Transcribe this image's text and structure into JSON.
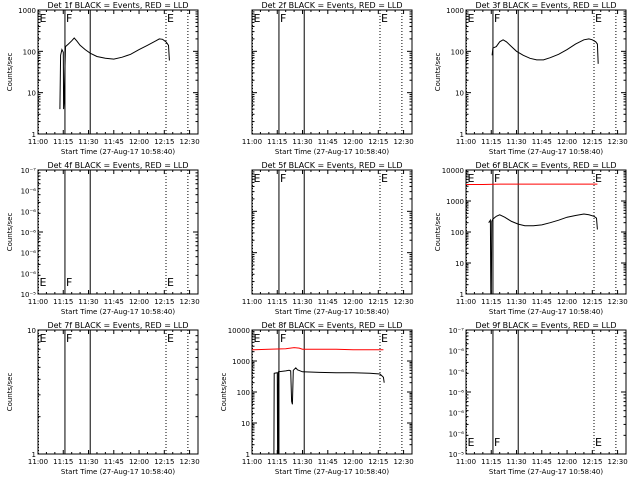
{
  "chart_data": [
    {
      "type": "line",
      "title": "Det 1f BLACK = Events, RED = LLD",
      "xlabel": "Start Time (27-Aug-17 10:58:40)",
      "ylabel": "Counts/sec",
      "xlim": [
        0,
        95
      ],
      "x_ticks": [
        "11:00",
        "11:15",
        "11:30",
        "11:45",
        "12:00",
        "12:15",
        "12:30"
      ],
      "y_scale": "log",
      "ylim": [
        1,
        1000
      ],
      "y_ticks": [
        "1",
        "10",
        "100",
        "1000"
      ],
      "event_lines": [
        {
          "t": 0,
          "style": "dotted",
          "label": "E"
        },
        {
          "t": 16,
          "style": "solid",
          "label": "F"
        },
        {
          "t": 31,
          "style": "solid",
          "label": ""
        },
        {
          "t": 76,
          "style": "dotted",
          "label": "E"
        },
        {
          "t": 89,
          "style": "dotted",
          "label": ""
        }
      ],
      "series": [
        {
          "color": "#000000",
          "points": [
            [
              13.0,
              4
            ],
            [
              13.4,
              80
            ],
            [
              14.2,
              110
            ],
            [
              15.0,
              95
            ],
            [
              15.2,
              4
            ],
            [
              15.5,
              6
            ],
            [
              16.3,
              130
            ],
            [
              18,
              150
            ],
            [
              20,
              180
            ],
            [
              21.5,
              210
            ],
            [
              23,
              180
            ],
            [
              25,
              140
            ],
            [
              28,
              110
            ],
            [
              31,
              90
            ],
            [
              35,
              75
            ],
            [
              40,
              68
            ],
            [
              45,
              65
            ],
            [
              50,
              72
            ],
            [
              55,
              85
            ],
            [
              60,
              110
            ],
            [
              65,
              140
            ],
            [
              70,
              180
            ],
            [
              72,
              200
            ],
            [
              74,
              195
            ],
            [
              76,
              170
            ],
            [
              77.5,
              140
            ],
            [
              78,
              60
            ]
          ]
        }
      ]
    },
    {
      "type": "line",
      "title": "Det 2f BLACK = Events, RED = LLD",
      "xlabel": "Start Time (27-Aug-17 10:58:40)",
      "ylabel": "",
      "xlim": [
        0,
        95
      ],
      "x_ticks": [
        "11:00",
        "11:15",
        "11:30",
        "11:45",
        "12:00",
        "12:15",
        "12:30"
      ],
      "y_scale": "log",
      "ylim": [
        1,
        1000
      ],
      "y_ticks": [],
      "event_lines": [
        {
          "t": 0,
          "style": "dotted",
          "label": "E"
        },
        {
          "t": 16,
          "style": "solid",
          "label": "F"
        },
        {
          "t": 31,
          "style": "solid",
          "label": ""
        },
        {
          "t": 76,
          "style": "dotted",
          "label": "E"
        },
        {
          "t": 89,
          "style": "dotted",
          "label": ""
        }
      ],
      "series": []
    },
    {
      "type": "line",
      "title": "Det 3f BLACK = Events, RED = LLD",
      "xlabel": "Start Time (27-Aug-17 10:58:40)",
      "ylabel": "Counts/sec",
      "xlim": [
        0,
        95
      ],
      "x_ticks": [
        "11:00",
        "11:15",
        "11:30",
        "11:45",
        "12:00",
        "12:15",
        "12:30"
      ],
      "y_scale": "log",
      "ylim": [
        1,
        1000
      ],
      "y_ticks": [
        "1",
        "10",
        "100",
        "1000"
      ],
      "event_lines": [
        {
          "t": 0,
          "style": "dotted",
          "label": "E"
        },
        {
          "t": 16,
          "style": "solid",
          "label": "F"
        },
        {
          "t": 31,
          "style": "solid",
          "label": ""
        },
        {
          "t": 76,
          "style": "dotted",
          "label": "E"
        },
        {
          "t": 89,
          "style": "dotted",
          "label": ""
        }
      ],
      "series": [
        {
          "color": "#000000",
          "points": [
            [
              15.5,
              80
            ],
            [
              16.0,
              120
            ],
            [
              18,
              130
            ],
            [
              20,
              170
            ],
            [
              22,
              190
            ],
            [
              24,
              170
            ],
            [
              27,
              130
            ],
            [
              30,
              100
            ],
            [
              34,
              80
            ],
            [
              38,
              68
            ],
            [
              42,
              62
            ],
            [
              46,
              62
            ],
            [
              50,
              70
            ],
            [
              55,
              85
            ],
            [
              60,
              110
            ],
            [
              65,
              150
            ],
            [
              70,
              190
            ],
            [
              73,
              200
            ],
            [
              75,
              190
            ],
            [
              77,
              170
            ],
            [
              78,
              150
            ],
            [
              78.5,
              50
            ]
          ]
        }
      ]
    },
    {
      "type": "line",
      "title": "Det 4f BLACK = Events, RED = LLD",
      "xlabel": "Start Time (27-Aug-17 10:58:40)",
      "ylabel": "Counts/sec",
      "xlim": [
        0,
        95
      ],
      "x_ticks": [
        "11:00",
        "11:15",
        "11:30",
        "11:45",
        "12:00",
        "12:15",
        "12:30"
      ],
      "y_scale": "log",
      "ylim": [
        1e-07,
        1e-05
      ],
      "y_ticks": [
        "10⁻⁵",
        "10⁻⁶",
        "10⁻⁶",
        "10⁻⁶",
        "10⁻⁶",
        "10⁻⁶",
        "10⁻⁷"
      ],
      "event_lines": [
        {
          "t": 0,
          "style": "dotted",
          "label": "E"
        },
        {
          "t": 16,
          "style": "solid",
          "label": "F"
        },
        {
          "t": 31,
          "style": "solid",
          "label": ""
        },
        {
          "t": 76,
          "style": "dotted",
          "label": "E"
        },
        {
          "t": 89,
          "style": "dotted",
          "label": ""
        }
      ],
      "series": []
    },
    {
      "type": "line",
      "title": "Det 5f BLACK = Events, RED = LLD",
      "xlabel": "Start Time (27-Aug-17 10:58:40)",
      "ylabel": "",
      "xlim": [
        0,
        95
      ],
      "x_ticks": [
        "11:00",
        "11:15",
        "11:30",
        "11:45",
        "12:00",
        "12:15",
        "12:30"
      ],
      "y_scale": "log",
      "ylim": [
        1,
        1000
      ],
      "y_ticks": [],
      "event_lines": [
        {
          "t": 0,
          "style": "dotted",
          "label": "E"
        },
        {
          "t": 16,
          "style": "solid",
          "label": "F"
        },
        {
          "t": 31,
          "style": "solid",
          "label": ""
        },
        {
          "t": 76,
          "style": "dotted",
          "label": "E"
        },
        {
          "t": 89,
          "style": "dotted",
          "label": ""
        }
      ],
      "series": []
    },
    {
      "type": "line",
      "title": "Det 6f BLACK = Events, RED = LLD",
      "xlabel": "Start Time (27-Aug-17 10:58:40)",
      "ylabel": "Counts/sec",
      "xlim": [
        0,
        95
      ],
      "x_ticks": [
        "11:00",
        "11:15",
        "11:30",
        "11:45",
        "12:00",
        "12:15",
        "12:30"
      ],
      "y_scale": "log",
      "ylim": [
        1,
        10000
      ],
      "y_ticks": [
        "1",
        "10",
        "100",
        "1000",
        "10000"
      ],
      "event_lines": [
        {
          "t": 0,
          "style": "dotted",
          "label": "E"
        },
        {
          "t": 16,
          "style": "solid",
          "label": "F"
        },
        {
          "t": 31,
          "style": "solid",
          "label": ""
        },
        {
          "t": 76,
          "style": "dotted",
          "label": "E"
        },
        {
          "t": 89,
          "style": "dotted",
          "label": ""
        }
      ],
      "series": [
        {
          "color": "#ff0000",
          "points": [
            [
              0,
              3400
            ],
            [
              10,
              3400
            ],
            [
              20,
              3500
            ],
            [
              30,
              3500
            ],
            [
              40,
              3500
            ],
            [
              50,
              3500
            ],
            [
              60,
              3500
            ],
            [
              70,
              3500
            ],
            [
              78,
              3500
            ]
          ]
        },
        {
          "color": "#000000",
          "points": [
            [
              13.5,
              200
            ],
            [
              14.5,
              240
            ],
            [
              14.7,
              1
            ],
            [
              15.0,
              1
            ],
            [
              15.3,
              220
            ],
            [
              16,
              260
            ],
            [
              18,
              320
            ],
            [
              20,
              360
            ],
            [
              23,
              300
            ],
            [
              27,
              220
            ],
            [
              31,
              180
            ],
            [
              35,
              160
            ],
            [
              40,
              160
            ],
            [
              45,
              170
            ],
            [
              50,
              200
            ],
            [
              55,
              240
            ],
            [
              60,
              300
            ],
            [
              65,
              340
            ],
            [
              70,
              380
            ],
            [
              73,
              360
            ],
            [
              76,
              320
            ],
            [
              77.5,
              280
            ],
            [
              78,
              120
            ]
          ]
        }
      ]
    },
    {
      "type": "line",
      "title": "Det 7f BLACK = Events, RED = LLD",
      "xlabel": "Start Time (27-Aug-17 10:58:40)",
      "ylabel": "Counts/sec",
      "xlim": [
        0,
        95
      ],
      "x_ticks": [
        "11:00",
        "11:15",
        "11:30",
        "11:45",
        "12:00",
        "12:15",
        "12:30"
      ],
      "y_scale": "log",
      "ylim": [
        1,
        10
      ],
      "y_ticks": [
        "1",
        "10"
      ],
      "event_lines": [
        {
          "t": 0,
          "style": "dotted",
          "label": "E"
        },
        {
          "t": 16,
          "style": "solid",
          "label": "F"
        },
        {
          "t": 31,
          "style": "solid",
          "label": ""
        },
        {
          "t": 76,
          "style": "dotted",
          "label": "E"
        },
        {
          "t": 89,
          "style": "dotted",
          "label": ""
        }
      ],
      "series": []
    },
    {
      "type": "line",
      "title": "Det 8f BLACK = Events, RED = LLD",
      "xlabel": "Start Time (27-Aug-17 10:58:40)",
      "ylabel": "Counts/sec",
      "xlim": [
        0,
        95
      ],
      "x_ticks": [
        "11:00",
        "11:15",
        "11:30",
        "11:45",
        "12:00",
        "12:15",
        "12:30"
      ],
      "y_scale": "log",
      "ylim": [
        1,
        10000
      ],
      "y_ticks": [
        "1",
        "10",
        "100",
        "1000",
        "10000"
      ],
      "event_lines": [
        {
          "t": 0,
          "style": "dotted",
          "label": "E"
        },
        {
          "t": 16,
          "style": "solid",
          "label": "F"
        },
        {
          "t": 31,
          "style": "solid",
          "label": ""
        },
        {
          "t": 76,
          "style": "dotted",
          "label": "E"
        },
        {
          "t": 89,
          "style": "dotted",
          "label": ""
        }
      ],
      "series": [
        {
          "color": "#ff0000",
          "points": [
            [
              0,
              2300
            ],
            [
              10,
              2400
            ],
            [
              20,
              2500
            ],
            [
              25,
              2700
            ],
            [
              28,
              2600
            ],
            [
              30,
              2400
            ],
            [
              40,
              2400
            ],
            [
              50,
              2400
            ],
            [
              60,
              2300
            ],
            [
              70,
              2300
            ],
            [
              78,
              2300
            ]
          ]
        },
        {
          "color": "#000000",
          "points": [
            [
              13.0,
              1
            ],
            [
              13.2,
              400
            ],
            [
              15.0,
              420
            ],
            [
              15.2,
              1
            ],
            [
              15.5,
              1
            ],
            [
              15.7,
              450
            ],
            [
              20,
              480
            ],
            [
              22,
              500
            ],
            [
              23,
              480
            ],
            [
              23.5,
              50
            ],
            [
              24,
              40
            ],
            [
              24.5,
              500
            ],
            [
              26,
              600
            ],
            [
              27,
              520
            ],
            [
              30,
              450
            ],
            [
              40,
              430
            ],
            [
              50,
              420
            ],
            [
              60,
              420
            ],
            [
              70,
              400
            ],
            [
              76,
              380
            ],
            [
              78,
              300
            ],
            [
              78.5,
              200
            ]
          ]
        }
      ]
    },
    {
      "type": "line",
      "title": "Det 9f BLACK = Events, RED = LLD",
      "xlabel": "Start Time (27-Aug-17 10:58:40)",
      "ylabel": "",
      "xlim": [
        0,
        95
      ],
      "x_ticks": [
        "11:00",
        "11:15",
        "11:30",
        "11:45",
        "12:00",
        "12:15",
        "12:30"
      ],
      "y_scale": "log",
      "ylim": [
        1e-07,
        1e-05
      ],
      "y_ticks": [
        "10⁻⁵",
        "10⁻⁶",
        "10⁻⁶",
        "10⁻⁶",
        "10⁻⁶",
        "10⁻⁶",
        "10⁻⁷"
      ],
      "event_lines": [
        {
          "t": 0,
          "style": "dotted",
          "label": "E"
        },
        {
          "t": 16,
          "style": "solid",
          "label": "F"
        },
        {
          "t": 31,
          "style": "solid",
          "label": ""
        },
        {
          "t": 76,
          "style": "dotted",
          "label": "E"
        },
        {
          "t": 89,
          "style": "dotted",
          "label": ""
        }
      ],
      "series": []
    }
  ]
}
